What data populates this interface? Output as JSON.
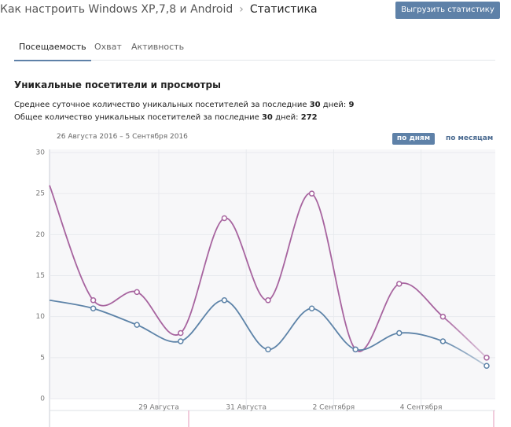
{
  "header": {
    "breadcrumb": "Как настроить Windows XP,7,8 и Android",
    "current": "Статистика",
    "button": "Выгрузить статистику"
  },
  "tabs": [
    "Посещаемость",
    "Охват",
    "Активность"
  ],
  "section_title": "Уникальные посетители и просмотры",
  "stats": [
    {
      "text": "Среднее суточное количество уникальных посетителей за последние",
      "days": "30",
      "unit": "дней:",
      "value": "9"
    },
    {
      "text": "Общее количество уникальных посетителей за последние",
      "days": "30",
      "unit": "дней:",
      "value": "272"
    }
  ],
  "date_range": "26 Августа 2016 – 5 Сентября 2016",
  "toggles": [
    "по дням",
    "по месяцам"
  ],
  "chart_data": {
    "type": "line",
    "categories": [
      null,
      null,
      null,
      "29 Августа",
      null,
      "31 Августа",
      null,
      "2 Сентября",
      null,
      "4 Сентября",
      null
    ],
    "series": [
      {
        "color": "#a7649f",
        "values": [
          26,
          12,
          13,
          8,
          22,
          12,
          25,
          6,
          14,
          10,
          5
        ]
      },
      {
        "color": "#5d83a8",
        "values": [
          12,
          11,
          9,
          7,
          12,
          6,
          11,
          6,
          8,
          7,
          4
        ]
      }
    ],
    "ylim": [
      0,
      30
    ],
    "yticks": [
      0,
      5,
      10,
      15,
      20,
      25,
      30
    ],
    "grid": true
  }
}
